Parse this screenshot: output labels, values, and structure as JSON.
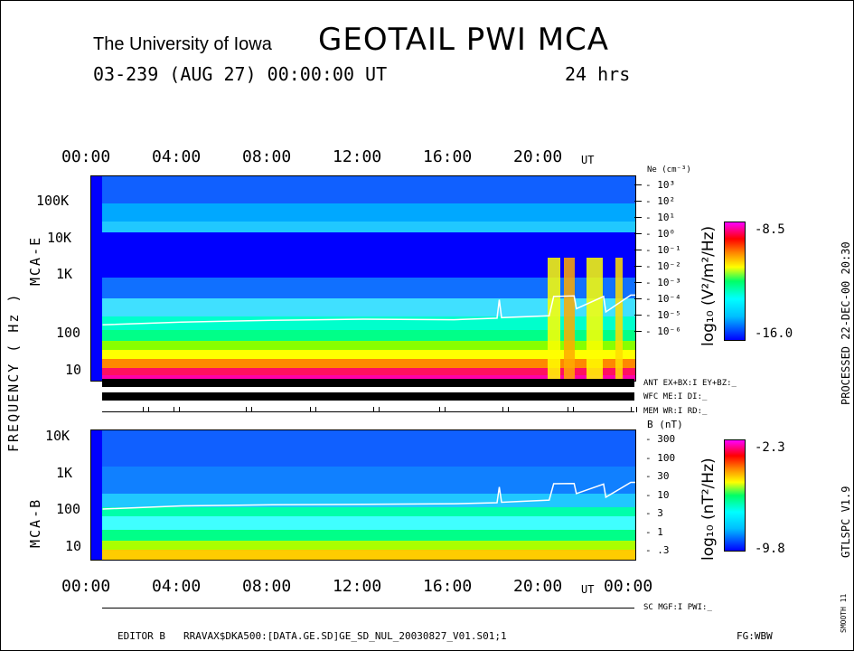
{
  "header": {
    "institution": "The University of Iowa",
    "title": "GEOTAIL PWI MCA",
    "date_line": "03-239 (AUG 27) 00:00:00 UT",
    "duration": "24 hrs"
  },
  "axes": {
    "time_ticks": [
      "00:00",
      "04:00",
      "08:00",
      "12:00",
      "16:00",
      "20:00",
      "00:00"
    ],
    "time_unit": "UT",
    "freq_label": "FREQUENCY ( Hz )",
    "panel_e_label": "MCA-E",
    "panel_b_label": "MCA-B",
    "e_ticks": [
      "100K",
      "10K",
      "1K",
      "100",
      "10"
    ],
    "b_ticks": [
      "10K",
      "1K",
      "100",
      "10"
    ],
    "ne_label": "Ne (cm⁻³)",
    "ne_ticks": [
      "10³",
      "10²",
      "10¹",
      "10⁰",
      "10⁻¹",
      "10⁻²",
      "10⁻³",
      "10⁻⁴",
      "10⁻⁵",
      "10⁻⁶"
    ],
    "b_label": "B (nT)",
    "b_right_ticks": [
      "300",
      "100",
      "30",
      "10",
      "3",
      "1",
      ".3"
    ]
  },
  "colorbars": {
    "e_label": "log₁₀ (V²/m²/Hz)",
    "e_max": "-8.5",
    "e_min": "-16.0",
    "b_label": "log₁₀ (nT²/Hz)",
    "b_max": "-2.3",
    "b_min": "-9.8"
  },
  "status": {
    "ant": "ANT EX+BX:I EY+BZ:_",
    "wfc": "WFC ME:I    DI:_",
    "mem": "MEM WR:I    RD:_",
    "sc": "SC MGF:I   PWI:_"
  },
  "side": {
    "processed": "PROCESSED 22-DEC-00  20:30",
    "version": "GTLSPC  V1.9",
    "smooth": "SMOOTH 11"
  },
  "footer": {
    "editor": "EDITOR B",
    "path": "RRAVAX$DKA500:[DATA.GE.SD]GE_SD_NUL_20030827_V01.S01;1",
    "fg": "FG:WBW"
  },
  "chart_data": [
    {
      "type": "heatmap",
      "panel": "MCA-E",
      "x_range_hours": [
        0,
        24
      ],
      "y_scale": "log",
      "y_range_hz": [
        5,
        560000
      ],
      "z_range": [
        -16.0,
        -8.5
      ],
      "overlay_line_ne_cm3": {
        "x_hours": [
          0.5,
          4,
          8,
          12,
          16,
          17.9,
          18,
          18.1,
          20.2,
          20.4,
          21.3,
          21.4,
          22.6,
          22.7,
          23.8,
          24
        ],
        "y_hz": [
          120,
          140,
          155,
          165,
          160,
          175,
          500,
          180,
          200,
          600,
          620,
          300,
          600,
          250,
          650,
          650
        ]
      }
    },
    {
      "type": "heatmap",
      "panel": "MCA-B",
      "x_range_hours": [
        0,
        24
      ],
      "y_scale": "log",
      "y_range_hz": [
        5,
        15000
      ],
      "z_range": [
        -9.8,
        -2.3
      ],
      "overlay_line_b_nt": {
        "x_hours": [
          0.5,
          4,
          8,
          12,
          16,
          17.9,
          18,
          18.1,
          20.2,
          20.4,
          21.3,
          21.4,
          22.6,
          22.7,
          23.8,
          24
        ],
        "y_hz": [
          115,
          140,
          150,
          155,
          160,
          170,
          450,
          175,
          200,
          550,
          560,
          300,
          540,
          240,
          600,
          600
        ]
      }
    }
  ]
}
